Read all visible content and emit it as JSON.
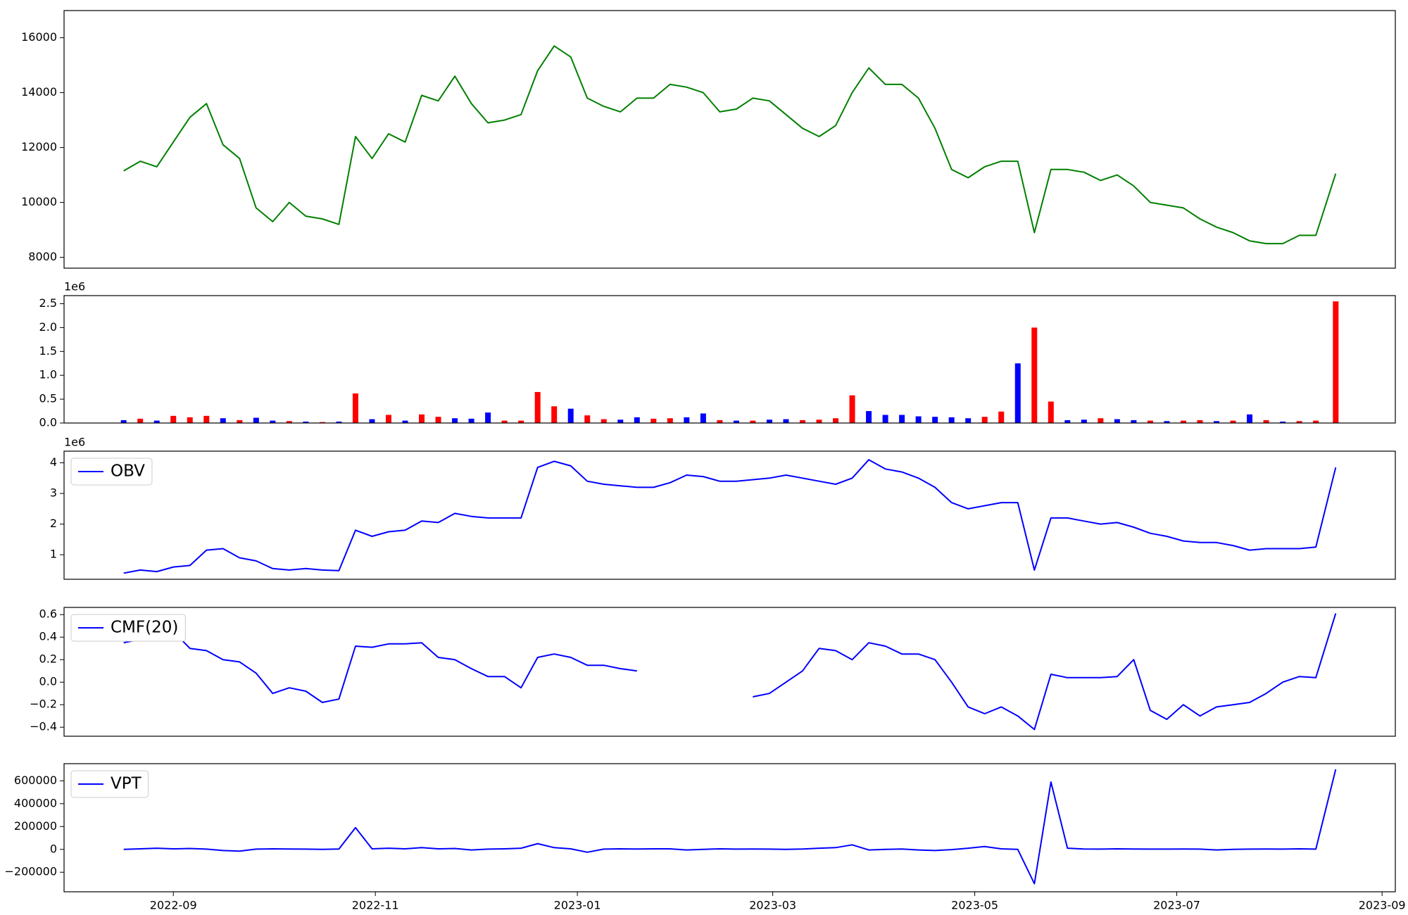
{
  "chart_data": [
    {
      "type": "line",
      "color": "green",
      "x": [
        19221,
        19226,
        19231,
        19236,
        19241,
        19246,
        19251,
        19256,
        19261,
        19266,
        19271,
        19276,
        19281,
        19286,
        19291,
        19296,
        19301,
        19306,
        19311,
        19316,
        19321,
        19326,
        19331,
        19336,
        19341,
        19346,
        19351,
        19356,
        19361,
        19366,
        19371,
        19376,
        19381,
        19386,
        19391,
        19396,
        19401,
        19406,
        19411,
        19416,
        19421,
        19426,
        19431,
        19436,
        19441,
        19446,
        19451,
        19456,
        19461,
        19466,
        19471,
        19476,
        19481,
        19486,
        19491,
        19496,
        19501,
        19506,
        19511,
        19516,
        19521,
        19526,
        19531,
        19536,
        19541,
        19546,
        19551,
        19556,
        19561,
        19566,
        19571,
        19576,
        19581,
        19587
      ],
      "values": [
        11150,
        11500,
        11300,
        12200,
        13100,
        13600,
        12100,
        11600,
        9800,
        9300,
        10000,
        9500,
        9400,
        9200,
        12400,
        11600,
        12500,
        12200,
        13900,
        13700,
        14600,
        13600,
        12900,
        13000,
        13200,
        14800,
        15700,
        15300,
        13800,
        13500,
        13300,
        13800,
        13800,
        14300,
        14200,
        14000,
        13300,
        13400,
        13800,
        13700,
        13200,
        12700,
        12400,
        12800,
        14000,
        14900,
        14300,
        14300,
        13800,
        12700,
        11200,
        10900,
        11300,
        11500,
        11500,
        8900,
        11200,
        11200,
        11100,
        10800,
        11000,
        10600,
        10000,
        9900,
        9800,
        9400,
        9100,
        8900,
        8600,
        8500,
        8500,
        8800,
        8800,
        11050
      ],
      "xlim": [
        19203,
        19605
      ],
      "ylim": [
        7605,
        16990
      ],
      "yticks": [
        8000,
        10000,
        12000,
        14000,
        16000
      ]
    },
    {
      "type": "bar",
      "offset_text": "1e6",
      "x": [
        19221,
        19226,
        19231,
        19236,
        19241,
        19246,
        19251,
        19256,
        19261,
        19266,
        19271,
        19276,
        19281,
        19286,
        19291,
        19296,
        19301,
        19306,
        19311,
        19316,
        19321,
        19326,
        19331,
        19336,
        19341,
        19346,
        19351,
        19356,
        19361,
        19366,
        19371,
        19376,
        19381,
        19386,
        19391,
        19396,
        19401,
        19406,
        19411,
        19416,
        19421,
        19426,
        19431,
        19436,
        19441,
        19446,
        19451,
        19456,
        19461,
        19466,
        19471,
        19476,
        19481,
        19486,
        19491,
        19496,
        19501,
        19506,
        19511,
        19516,
        19521,
        19526,
        19531,
        19536,
        19541,
        19546,
        19551,
        19556,
        19561,
        19566,
        19571,
        19576,
        19581,
        19587
      ],
      "values": [
        60000,
        90000,
        50000,
        150000,
        120000,
        150000,
        100000,
        60000,
        110000,
        50000,
        40000,
        30000,
        20000,
        30000,
        620000,
        80000,
        170000,
        50000,
        180000,
        130000,
        100000,
        90000,
        220000,
        50000,
        50000,
        650000,
        350000,
        300000,
        160000,
        80000,
        70000,
        120000,
        90000,
        100000,
        120000,
        200000,
        60000,
        50000,
        50000,
        70000,
        80000,
        60000,
        70000,
        100000,
        580000,
        250000,
        170000,
        170000,
        140000,
        130000,
        120000,
        100000,
        130000,
        240000,
        1250000,
        2000000,
        450000,
        60000,
        70000,
        100000,
        80000,
        60000,
        50000,
        40000,
        50000,
        60000,
        40000,
        50000,
        180000,
        60000,
        30000,
        40000,
        50000,
        2550000
      ],
      "colors": [
        "blue",
        "red",
        "blue",
        "red",
        "red",
        "red",
        "blue",
        "red",
        "blue",
        "blue",
        "red",
        "blue",
        "red",
        "blue",
        "red",
        "blue",
        "red",
        "blue",
        "red",
        "red",
        "blue",
        "blue",
        "blue",
        "red",
        "red",
        "red",
        "red",
        "blue",
        "red",
        "red",
        "blue",
        "blue",
        "red",
        "red",
        "blue",
        "blue",
        "red",
        "blue",
        "red",
        "blue",
        "blue",
        "red",
        "red",
        "red",
        "red",
        "blue",
        "blue",
        "blue",
        "blue",
        "blue",
        "blue",
        "blue",
        "red",
        "red",
        "blue",
        "red",
        "red",
        "blue",
        "blue",
        "red",
        "blue",
        "blue",
        "red",
        "blue",
        "red",
        "red",
        "blue",
        "red",
        "blue",
        "red",
        "blue",
        "red",
        "red",
        "red"
      ],
      "xlim": [
        19203,
        19605
      ],
      "ylim": [
        0,
        2670000
      ],
      "yticks": [
        {
          "value": 0,
          "label": "0.0"
        },
        {
          "value": 500000,
          "label": "0.5"
        },
        {
          "value": 1000000,
          "label": "1.0"
        },
        {
          "value": 1500000,
          "label": "1.5"
        },
        {
          "value": 2000000,
          "label": "2.0"
        },
        {
          "value": 2500000,
          "label": "2.5"
        }
      ]
    },
    {
      "type": "line",
      "offset_text": "1e6",
      "legend": "upper left",
      "x": [
        19221,
        19226,
        19231,
        19236,
        19241,
        19246,
        19251,
        19256,
        19261,
        19266,
        19271,
        19276,
        19281,
        19286,
        19291,
        19296,
        19301,
        19306,
        19311,
        19316,
        19321,
        19326,
        19331,
        19336,
        19341,
        19346,
        19351,
        19356,
        19361,
        19366,
        19371,
        19376,
        19381,
        19386,
        19391,
        19396,
        19401,
        19406,
        19411,
        19416,
        19421,
        19426,
        19431,
        19436,
        19441,
        19446,
        19451,
        19456,
        19461,
        19466,
        19471,
        19476,
        19481,
        19486,
        19491,
        19496,
        19501,
        19506,
        19511,
        19516,
        19521,
        19526,
        19531,
        19536,
        19541,
        19546,
        19551,
        19556,
        19561,
        19566,
        19571,
        19576,
        19581,
        19587
      ],
      "series": [
        {
          "name": "OBV",
          "color": "blue",
          "values": [
            400000,
            500000,
            450000,
            600000,
            650000,
            1150000,
            1200000,
            900000,
            800000,
            550000,
            500000,
            550000,
            500000,
            480000,
            1800000,
            1600000,
            1750000,
            1800000,
            2100000,
            2050000,
            2350000,
            2250000,
            2200000,
            2200000,
            2200000,
            3850000,
            4050000,
            3900000,
            3400000,
            3300000,
            3250000,
            3200000,
            3200000,
            3350000,
            3600000,
            3550000,
            3400000,
            3400000,
            3450000,
            3500000,
            3600000,
            3500000,
            3400000,
            3300000,
            3500000,
            4100000,
            3800000,
            3700000,
            3500000,
            3200000,
            2700000,
            2500000,
            2600000,
            2700000,
            2700000,
            500000,
            2200000,
            2200000,
            2100000,
            2000000,
            2050000,
            1900000,
            1700000,
            1600000,
            1450000,
            1400000,
            1400000,
            1300000,
            1150000,
            1200000,
            1200000,
            1200000,
            1250000,
            3850000
          ]
        }
      ],
      "xlim": [
        19203,
        19605
      ],
      "ylim": [
        200000,
        4380000
      ],
      "yticks": [
        {
          "value": 1000000,
          "label": "1"
        },
        {
          "value": 2000000,
          "label": "2"
        },
        {
          "value": 3000000,
          "label": "3"
        },
        {
          "value": 4000000,
          "label": "4"
        }
      ]
    },
    {
      "type": "line",
      "legend": "upper left",
      "x": [
        19221,
        19226,
        19231,
        19236,
        19241,
        19246,
        19251,
        19256,
        19261,
        19266,
        19271,
        19276,
        19281,
        19286,
        19291,
        19296,
        19301,
        19306,
        19311,
        19316,
        19321,
        19326,
        19331,
        19336,
        19341,
        19346,
        19351,
        19356,
        19361,
        19366,
        19371,
        19376,
        19381,
        19386,
        19391,
        19396,
        19401,
        19406,
        19411,
        19416,
        19421,
        19426,
        19431,
        19436,
        19441,
        19446,
        19451,
        19456,
        19461,
        19466,
        19471,
        19476,
        19481,
        19486,
        19491,
        19496,
        19501,
        19506,
        19511,
        19516,
        19521,
        19526,
        19531,
        19536,
        19541,
        19546,
        19551,
        19556,
        19561,
        19566,
        19571,
        19576,
        19581,
        19587
      ],
      "series": [
        {
          "name": "CMF(20)",
          "color": "blue",
          "values": [
            0.35,
            0.38,
            0.38,
            0.45,
            0.3,
            0.28,
            0.2,
            0.18,
            0.08,
            -0.1,
            -0.05,
            -0.08,
            -0.18,
            -0.15,
            0.32,
            0.31,
            0.34,
            0.34,
            0.35,
            0.22,
            0.2,
            0.12,
            0.05,
            0.05,
            -0.05,
            0.22,
            0.25,
            0.22,
            0.15,
            0.15,
            0.12,
            0.1,
            null,
            null,
            null,
            null,
            null,
            null,
            -0.13,
            -0.1,
            0.0,
            0.1,
            0.3,
            0.28,
            0.2,
            0.35,
            0.32,
            0.25,
            0.25,
            0.2,
            0.0,
            -0.22,
            -0.28,
            -0.22,
            -0.3,
            -0.42,
            0.07,
            0.04,
            0.04,
            0.04,
            0.05,
            0.2,
            -0.25,
            -0.33,
            -0.2,
            -0.3,
            -0.22,
            -0.2,
            -0.18,
            -0.1,
            0.0,
            0.05,
            0.04,
            0.61
          ]
        }
      ],
      "xlim": [
        19203,
        19605
      ],
      "ylim": [
        -0.48,
        0.664
      ],
      "yticks": [
        {
          "value": -0.4,
          "label": "−0.4"
        },
        {
          "value": -0.2,
          "label": "−0.2"
        },
        {
          "value": 0,
          "label": "0.0"
        },
        {
          "value": 0.2,
          "label": "0.2"
        },
        {
          "value": 0.4,
          "label": "0.4"
        },
        {
          "value": 0.6,
          "label": "0.6"
        }
      ]
    },
    {
      "type": "line",
      "legend": "upper left",
      "x": [
        19221,
        19226,
        19231,
        19236,
        19241,
        19246,
        19251,
        19256,
        19261,
        19266,
        19271,
        19276,
        19281,
        19286,
        19291,
        19296,
        19301,
        19306,
        19311,
        19316,
        19321,
        19326,
        19331,
        19336,
        19341,
        19346,
        19351,
        19356,
        19361,
        19366,
        19371,
        19376,
        19381,
        19386,
        19391,
        19396,
        19401,
        19406,
        19411,
        19416,
        19421,
        19426,
        19431,
        19436,
        19441,
        19446,
        19451,
        19456,
        19461,
        19466,
        19471,
        19476,
        19481,
        19486,
        19491,
        19496,
        19501,
        19506,
        19511,
        19516,
        19521,
        19526,
        19531,
        19536,
        19541,
        19546,
        19551,
        19556,
        19561,
        19566,
        19571,
        19576,
        19581,
        19587
      ],
      "series": [
        {
          "name": "VPT",
          "color": "blue",
          "values": [
            0,
            5000,
            10000,
            5000,
            8000,
            2000,
            -10000,
            -15000,
            2000,
            5000,
            3000,
            2000,
            0,
            3000,
            190000,
            5000,
            10000,
            5000,
            15000,
            5000,
            8000,
            -5000,
            2000,
            5000,
            10000,
            50000,
            15000,
            5000,
            -25000,
            2000,
            5000,
            3000,
            5000,
            5000,
            -5000,
            0,
            5000,
            2000,
            3000,
            2000,
            0,
            3000,
            10000,
            15000,
            40000,
            -5000,
            0,
            3000,
            -5000,
            -10000,
            -2000,
            10000,
            25000,
            5000,
            0,
            -300000,
            590000,
            10000,
            3000,
            2000,
            5000,
            3000,
            2000,
            2000,
            3000,
            2000,
            -5000,
            0,
            2000,
            3000,
            2000,
            5000,
            2000,
            700000
          ]
        }
      ],
      "xlim": [
        19203,
        19605
      ],
      "ylim": [
        -371000,
        750000
      ],
      "yticks": [
        {
          "value": -200000,
          "label": "−200000"
        },
        0,
        200000,
        400000,
        600000
      ],
      "xticks": [
        {
          "value": 19236,
          "label": "2022-09"
        },
        {
          "value": 19297,
          "label": "2022-11"
        },
        {
          "value": 19358,
          "label": "2023-01"
        },
        {
          "value": 19417,
          "label": "2023-03"
        },
        {
          "value": 19478,
          "label": "2023-05"
        },
        {
          "value": 19539,
          "label": "2023-07"
        },
        {
          "value": 19601,
          "label": "2023-09"
        }
      ]
    }
  ]
}
